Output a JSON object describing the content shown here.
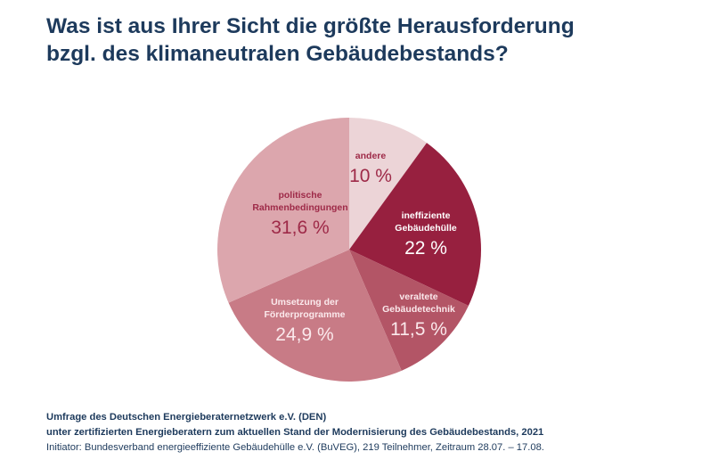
{
  "title_lines": [
    "Was ist aus Ihrer Sicht die größte Herausforderung",
    "bzgl. des klimaneutralen Gebäudebestands?"
  ],
  "chart_data": {
    "type": "pie",
    "start": "top",
    "direction": "clockwise",
    "slices": [
      {
        "label": [
          "andere"
        ],
        "value": 10,
        "display": "10 %",
        "color": "#ecd4d7",
        "text_color": "#9e2a48"
      },
      {
        "label": [
          "ineffiziente",
          "Gebäudehülle"
        ],
        "value": 22,
        "display": "22 %",
        "color": "#97203f",
        "text_color": "#ffffff"
      },
      {
        "label": [
          "veraltete",
          "Gebäudetechnik"
        ],
        "value": 11.5,
        "display": "11,5 %",
        "color": "#b35566",
        "text_color": "#fbe9ec"
      },
      {
        "label": [
          "Umsetzung der",
          "Förderprogramme"
        ],
        "value": 24.9,
        "display": "24,9 %",
        "color": "#c87b86",
        "text_color": "#fbe9ec"
      },
      {
        "label": [
          "politische",
          "Rahmenbedingungen"
        ],
        "value": 31.6,
        "display": "31,6 %",
        "color": "#dca6ad",
        "text_color": "#9e2a48"
      }
    ]
  },
  "footer": {
    "line1": "Umfrage des Deutschen Energieberaternetzwerk e.V. (DEN)",
    "line2": "unter zertifizierten Energieberatern zum aktuellen Stand der Modernisierung des Gebäudebestands, 2021",
    "line3": "Initiator: Bundesverband energieeffiziente Gebäudehülle e.V. (BuVEG), 219 Teilnehmer, Zeitraum 28.07. – 17.08."
  }
}
